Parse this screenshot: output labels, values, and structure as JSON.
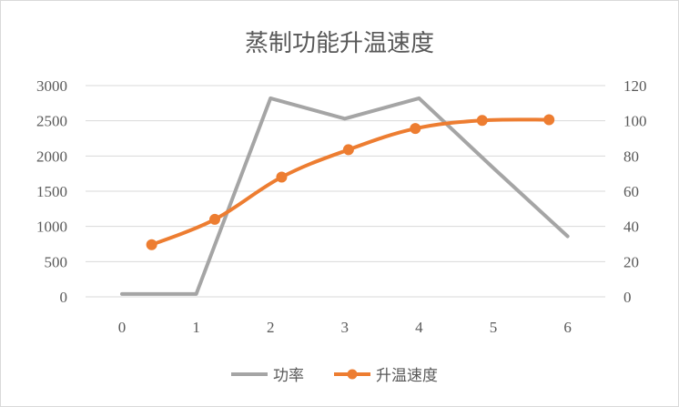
{
  "chart_data": {
    "type": "line",
    "title": "蒸制功能升温速度",
    "x_ticks": [
      "0",
      "1",
      "2",
      "3",
      "4",
      "5",
      "6"
    ],
    "y_left": {
      "ticks": [
        "0",
        "500",
        "1000",
        "1500",
        "2000",
        "2500",
        "3000"
      ],
      "range": [
        0,
        3000
      ]
    },
    "y_right": {
      "ticks": [
        "0",
        "20",
        "40",
        "60",
        "80",
        "100",
        "120"
      ],
      "range": [
        0,
        120
      ]
    },
    "grid": true,
    "legend_position": "bottom",
    "series": [
      {
        "name": "功率",
        "axis": "left",
        "color": "#a5a5a5",
        "marker": "none",
        "smooth": false,
        "points": [
          [
            0,
            40
          ],
          [
            1,
            40
          ],
          [
            2,
            2820
          ],
          [
            3,
            2530
          ],
          [
            4,
            2820
          ],
          [
            5,
            1830
          ],
          [
            6,
            860
          ]
        ]
      },
      {
        "name": "升温速度",
        "axis": "right",
        "color": "#ed7d31",
        "marker": "circle",
        "smooth": true,
        "points": [
          [
            0.4,
            29.6
          ],
          [
            1.25,
            44
          ],
          [
            2.15,
            68
          ],
          [
            3.05,
            83.6
          ],
          [
            3.95,
            95.6
          ],
          [
            4.85,
            100.2
          ],
          [
            5.75,
            100.6
          ]
        ]
      }
    ]
  }
}
